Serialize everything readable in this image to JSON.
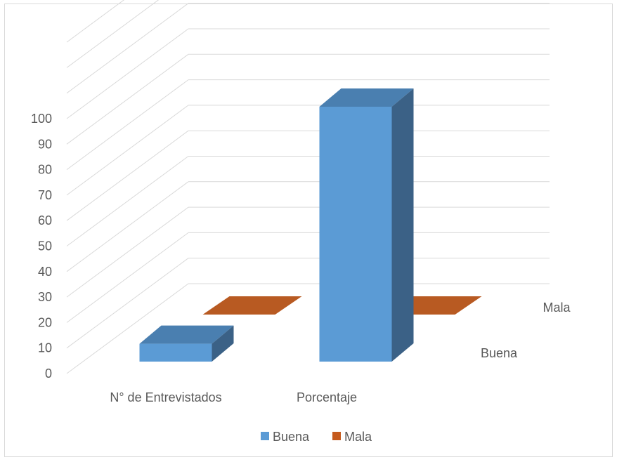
{
  "chart_data": {
    "type": "bar",
    "title": "",
    "xlabel": "",
    "ylabel": "",
    "categories": [
      "N° de Entrevistados",
      "Porcentaje"
    ],
    "series": [
      {
        "name": "Buena",
        "color": "#5b9bd5",
        "top_color": "#4a7fb0",
        "side_color": "#3b6186",
        "values": [
          7,
          100
        ]
      },
      {
        "name": "Mala",
        "color": "#c55a1d",
        "top_color": "#b85a22",
        "side_color": "#8f4316",
        "values": [
          0,
          0
        ]
      }
    ],
    "ylim": [
      0,
      100
    ],
    "yticks": [
      0,
      10,
      20,
      30,
      40,
      50,
      60,
      70,
      80,
      90,
      100
    ],
    "depth_labels": [
      "Buena",
      "Mala"
    ],
    "grid": true,
    "legend": "bottom"
  }
}
